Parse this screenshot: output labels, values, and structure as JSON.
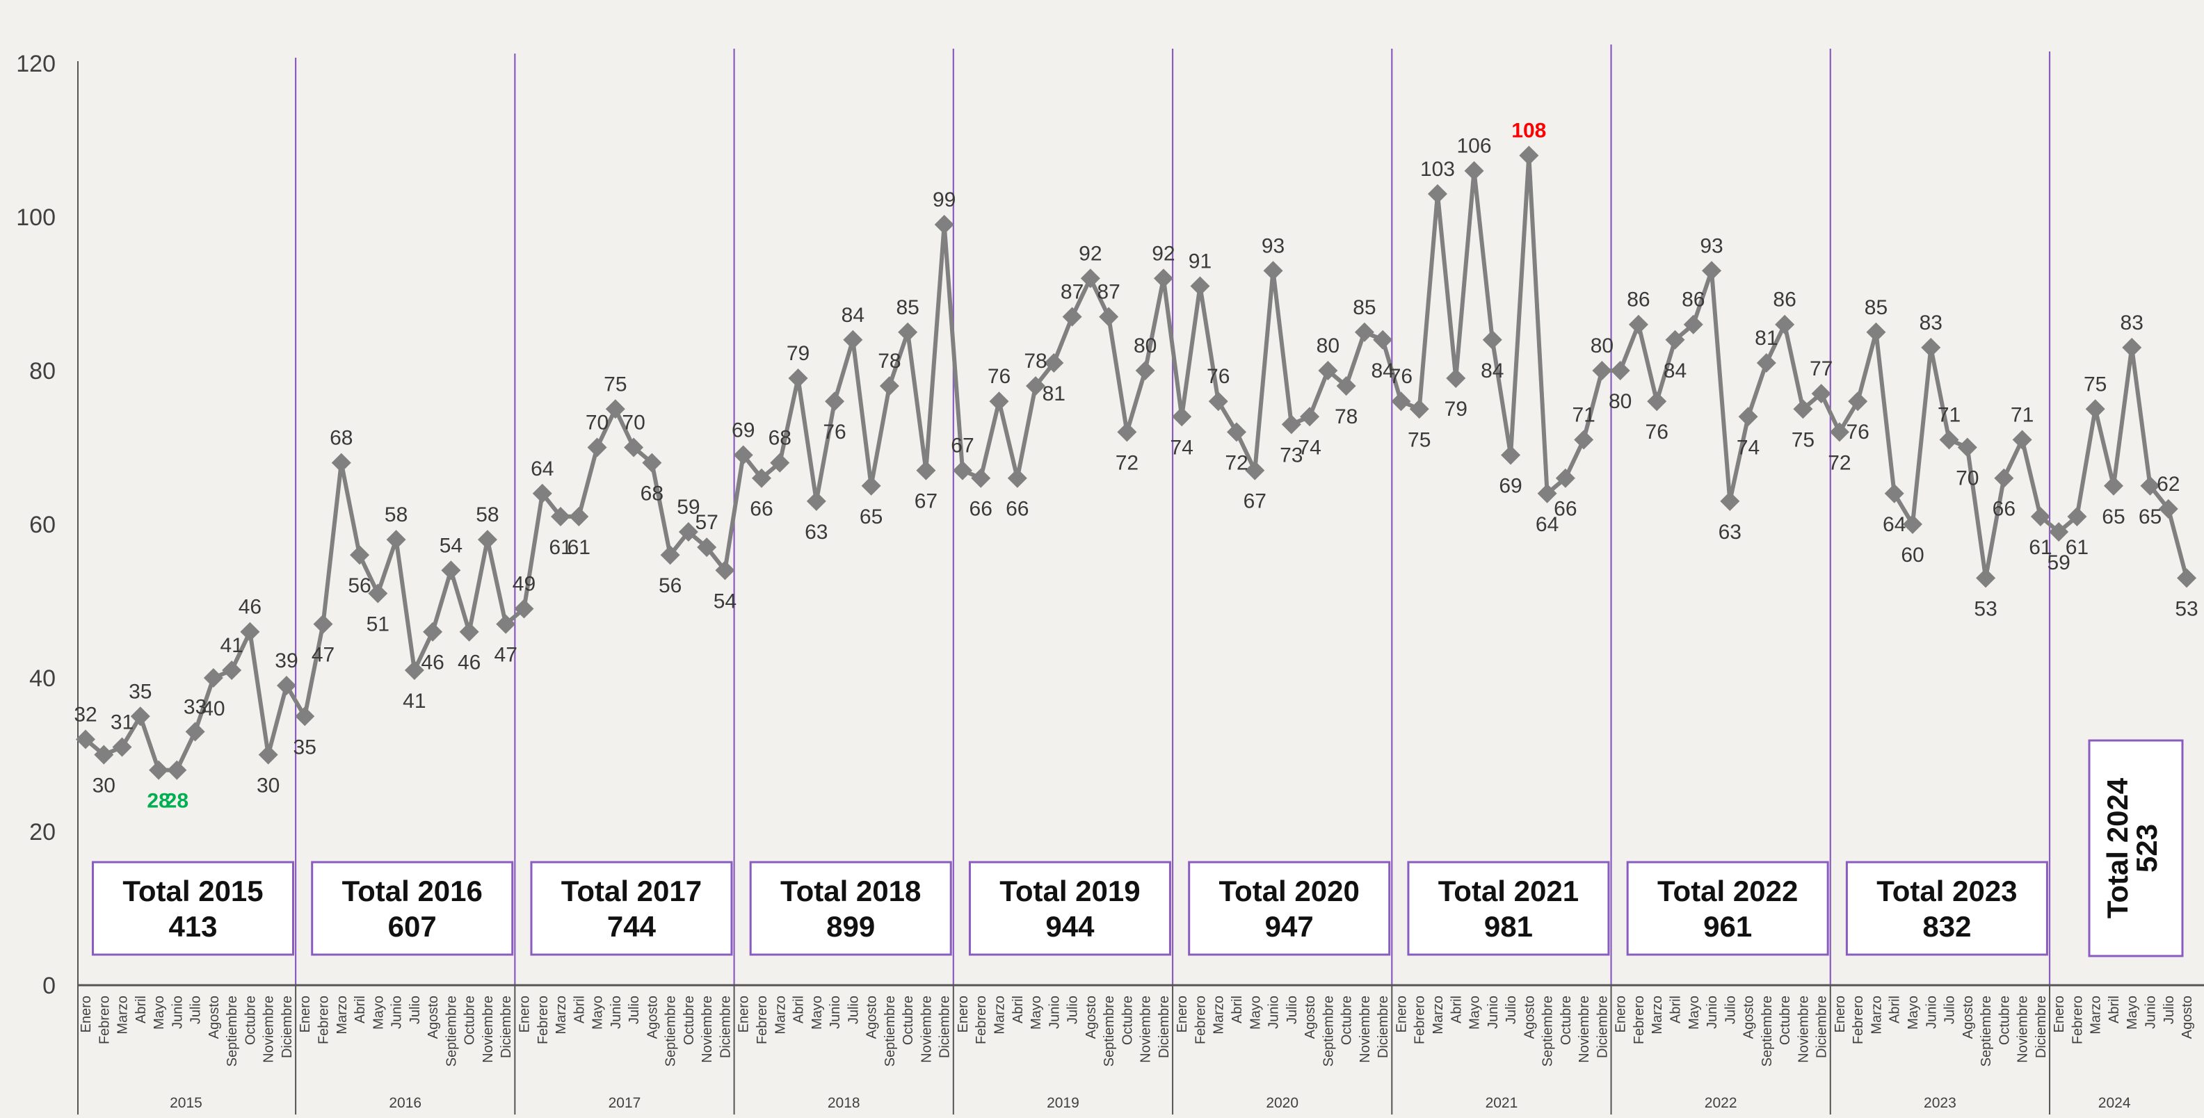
{
  "chart_data": {
    "type": "line",
    "title": "",
    "xlabel": "",
    "ylabel": "",
    "ylim": [
      0,
      120
    ],
    "y_ticks": [
      0,
      20,
      40,
      60,
      80,
      100,
      120
    ],
    "grid": false,
    "legend": "none",
    "colors": {
      "line": "#808080",
      "marker": "#808080",
      "separator": "#8a5cc0",
      "box_border": "#8a5cc0",
      "min_label": "#00b050",
      "max_label": "#ff0000",
      "label": "#3a3a3a",
      "axis_text": "#404040"
    },
    "years": [
      "2015",
      "2016",
      "2017",
      "2018",
      "2019",
      "2020",
      "2021",
      "2022",
      "2023",
      "2024"
    ],
    "months": [
      "Enero",
      "Febrero",
      "Marzo",
      "Abril",
      "Mayo",
      "Junio",
      "Julio",
      "Agosto",
      "Septiembre",
      "Octubre",
      "Noviembre",
      "Diciembre"
    ],
    "series": [
      {
        "values": [
          32,
          30,
          31,
          35,
          28,
          28,
          33,
          40,
          41,
          46,
          30,
          39,
          35,
          47,
          68,
          56,
          51,
          58,
          41,
          46,
          54,
          46,
          58,
          47,
          49,
          64,
          61,
          61,
          70,
          75,
          70,
          68,
          56,
          59,
          57,
          54,
          69,
          66,
          68,
          79,
          63,
          76,
          84,
          65,
          78,
          85,
          67,
          99,
          67,
          66,
          76,
          66,
          78,
          81,
          87,
          92,
          87,
          72,
          80,
          92,
          74,
          91,
          76,
          72,
          67,
          93,
          73,
          74,
          80,
          78,
          85,
          84,
          76,
          75,
          103,
          79,
          106,
          84,
          69,
          108,
          64,
          66,
          71,
          80,
          80,
          86,
          76,
          84,
          86,
          93,
          63,
          74,
          81,
          86,
          75,
          77,
          72,
          76,
          85,
          64,
          60,
          83,
          71,
          70,
          53,
          66,
          71,
          61,
          59,
          61,
          75,
          65,
          83,
          65,
          62,
          53
        ]
      }
    ],
    "highlights": {
      "min_value": 28,
      "max_value": 108
    },
    "totals": [
      {
        "label": "Total 2015",
        "value": "413"
      },
      {
        "label": "Total 2016",
        "value": "607"
      },
      {
        "label": "Total 2017",
        "value": "744"
      },
      {
        "label": "Total 2018",
        "value": "899"
      },
      {
        "label": "Total 2019",
        "value": "944"
      },
      {
        "label": "Total 2020",
        "value": "947"
      },
      {
        "label": "Total 2021",
        "value": "981"
      },
      {
        "label": "Total 2022",
        "value": "961"
      },
      {
        "label": "Total 2023",
        "value": "832"
      },
      {
        "label": "Total 2024",
        "value": "523"
      }
    ]
  }
}
